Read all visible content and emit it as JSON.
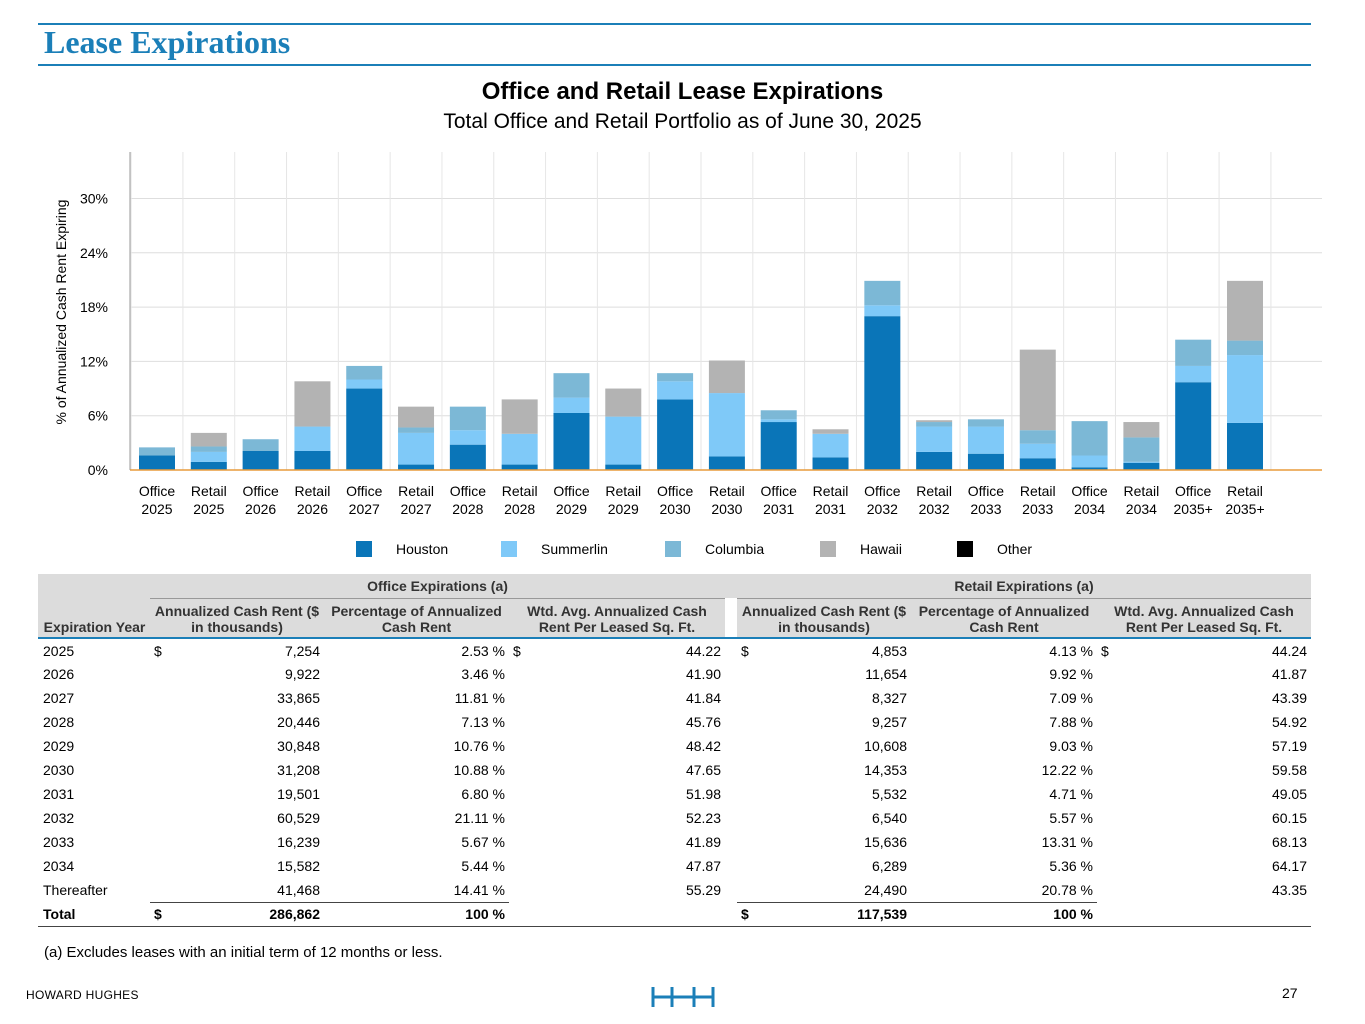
{
  "header": {
    "title": "Lease Expirations"
  },
  "chart_data": {
    "type": "bar",
    "stacked": true,
    "title": "Office and Retail Lease Expirations",
    "subtitle": "Total Office and Retail Portfolio as of June 30, 2025",
    "xlabel": "",
    "ylabel": "% of Annualized Cash Rent Expiring",
    "ylim": [
      0,
      35
    ],
    "yticks": [
      0,
      6,
      12,
      18,
      24,
      30
    ],
    "ytick_labels": [
      "0%",
      "6%",
      "12%",
      "18%",
      "24%",
      "30%"
    ],
    "grid": true,
    "legend_position": "bottom",
    "categories": [
      [
        "Office",
        "2025"
      ],
      [
        "Retail",
        "2025"
      ],
      [
        "Office",
        "2026"
      ],
      [
        "Retail",
        "2026"
      ],
      [
        "Office",
        "2027"
      ],
      [
        "Retail",
        "2027"
      ],
      [
        "Office",
        "2028"
      ],
      [
        "Retail",
        "2028"
      ],
      [
        "Office",
        "2029"
      ],
      [
        "Retail",
        "2029"
      ],
      [
        "Office",
        "2030"
      ],
      [
        "Retail",
        "2030"
      ],
      [
        "Office",
        "2031"
      ],
      [
        "Retail",
        "2031"
      ],
      [
        "Office",
        "2032"
      ],
      [
        "Retail",
        "2032"
      ],
      [
        "Office",
        "2033"
      ],
      [
        "Retail",
        "2033"
      ],
      [
        "Office",
        "2034"
      ],
      [
        "Retail",
        "2034"
      ],
      [
        "Office",
        "2035+"
      ],
      [
        "Retail",
        "2035+"
      ]
    ],
    "series": [
      {
        "name": "Houston",
        "color": "#0a75b8",
        "values": [
          1.6,
          0.9,
          2.1,
          2.1,
          9.0,
          0.6,
          2.8,
          0.6,
          6.3,
          0.6,
          7.8,
          1.5,
          5.3,
          1.4,
          17.0,
          2.0,
          1.8,
          1.3,
          0.3,
          0.8,
          9.7,
          5.2
        ]
      },
      {
        "name": "Summerlin",
        "color": "#7fc9f8",
        "values": [
          0.0,
          1.1,
          0.0,
          2.7,
          1.0,
          3.5,
          1.6,
          3.4,
          1.7,
          5.3,
          2.0,
          7.0,
          0.3,
          2.6,
          1.2,
          2.8,
          3.0,
          1.6,
          1.3,
          0.1,
          1.8,
          7.5
        ]
      },
      {
        "name": "Columbia",
        "color": "#7cb8d6",
        "values": [
          0.9,
          0.6,
          1.3,
          0.0,
          1.5,
          0.6,
          2.6,
          0.0,
          2.7,
          0.0,
          0.9,
          0.0,
          1.0,
          0.0,
          2.7,
          0.5,
          0.8,
          1.5,
          3.8,
          2.7,
          2.9,
          1.6
        ]
      },
      {
        "name": "Hawaii",
        "color": "#b3b3b3",
        "values": [
          0.0,
          1.5,
          0.0,
          5.0,
          0.0,
          2.3,
          0.0,
          3.8,
          0.0,
          3.1,
          0.0,
          3.6,
          0.0,
          0.5,
          0.0,
          0.2,
          0.0,
          8.9,
          0.0,
          1.7,
          0.0,
          6.6
        ]
      },
      {
        "name": "Other",
        "color": "#000000",
        "values": [
          0,
          0,
          0,
          0,
          0,
          0,
          0,
          0,
          0,
          0,
          0,
          0,
          0,
          0,
          0,
          0,
          0,
          0,
          0,
          0,
          0,
          0
        ]
      }
    ]
  },
  "table": {
    "office_group": "Office Expirations (a)",
    "retail_group": "Retail Expirations (a)",
    "year_header": "Expiration Year",
    "col_rent": "Annualized Cash Rent ($ in thousands)",
    "col_pct": "Percentage of Annualized Cash Rent",
    "col_wtd": "Wtd. Avg. Annualized Cash Rent Per Leased Sq. Ft.",
    "rows": [
      {
        "year": "2025",
        "o_rent_cur": "$",
        "o_rent": "7,254",
        "o_pct": "2.53 %",
        "o_wtd_cur": "$",
        "o_wtd": "44.22",
        "r_rent_cur": "$",
        "r_rent": "4,853",
        "r_pct": "4.13 %",
        "r_wtd_cur": "$",
        "r_wtd": "44.24"
      },
      {
        "year": "2026",
        "o_rent_cur": "",
        "o_rent": "9,922",
        "o_pct": "3.46 %",
        "o_wtd_cur": "",
        "o_wtd": "41.90",
        "r_rent_cur": "",
        "r_rent": "11,654",
        "r_pct": "9.92 %",
        "r_wtd_cur": "",
        "r_wtd": "41.87"
      },
      {
        "year": "2027",
        "o_rent_cur": "",
        "o_rent": "33,865",
        "o_pct": "11.81 %",
        "o_wtd_cur": "",
        "o_wtd": "41.84",
        "r_rent_cur": "",
        "r_rent": "8,327",
        "r_pct": "7.09 %",
        "r_wtd_cur": "",
        "r_wtd": "43.39"
      },
      {
        "year": "2028",
        "o_rent_cur": "",
        "o_rent": "20,446",
        "o_pct": "7.13 %",
        "o_wtd_cur": "",
        "o_wtd": "45.76",
        "r_rent_cur": "",
        "r_rent": "9,257",
        "r_pct": "7.88 %",
        "r_wtd_cur": "",
        "r_wtd": "54.92"
      },
      {
        "year": "2029",
        "o_rent_cur": "",
        "o_rent": "30,848",
        "o_pct": "10.76 %",
        "o_wtd_cur": "",
        "o_wtd": "48.42",
        "r_rent_cur": "",
        "r_rent": "10,608",
        "r_pct": "9.03 %",
        "r_wtd_cur": "",
        "r_wtd": "57.19"
      },
      {
        "year": "2030",
        "o_rent_cur": "",
        "o_rent": "31,208",
        "o_pct": "10.88 %",
        "o_wtd_cur": "",
        "o_wtd": "47.65",
        "r_rent_cur": "",
        "r_rent": "14,353",
        "r_pct": "12.22 %",
        "r_wtd_cur": "",
        "r_wtd": "59.58"
      },
      {
        "year": "2031",
        "o_rent_cur": "",
        "o_rent": "19,501",
        "o_pct": "6.80 %",
        "o_wtd_cur": "",
        "o_wtd": "51.98",
        "r_rent_cur": "",
        "r_rent": "5,532",
        "r_pct": "4.71 %",
        "r_wtd_cur": "",
        "r_wtd": "49.05"
      },
      {
        "year": "2032",
        "o_rent_cur": "",
        "o_rent": "60,529",
        "o_pct": "21.11 %",
        "o_wtd_cur": "",
        "o_wtd": "52.23",
        "r_rent_cur": "",
        "r_rent": "6,540",
        "r_pct": "5.57 %",
        "r_wtd_cur": "",
        "r_wtd": "60.15"
      },
      {
        "year": "2033",
        "o_rent_cur": "",
        "o_rent": "16,239",
        "o_pct": "5.67 %",
        "o_wtd_cur": "",
        "o_wtd": "41.89",
        "r_rent_cur": "",
        "r_rent": "15,636",
        "r_pct": "13.31 %",
        "r_wtd_cur": "",
        "r_wtd": "68.13"
      },
      {
        "year": "2034",
        "o_rent_cur": "",
        "o_rent": "15,582",
        "o_pct": "5.44 %",
        "o_wtd_cur": "",
        "o_wtd": "47.87",
        "r_rent_cur": "",
        "r_rent": "6,289",
        "r_pct": "5.36 %",
        "r_wtd_cur": "",
        "r_wtd": "64.17"
      },
      {
        "year": "Thereafter",
        "o_rent_cur": "",
        "o_rent": "41,468",
        "o_pct": "14.41 %",
        "o_wtd_cur": "",
        "o_wtd": "55.29",
        "r_rent_cur": "",
        "r_rent": "24,490",
        "r_pct": "20.78 %",
        "r_wtd_cur": "",
        "r_wtd": "43.35"
      }
    ],
    "total": {
      "label": "Total",
      "o_rent_cur": "$",
      "o_rent": "286,862",
      "o_pct": "100 %",
      "r_rent_cur": "$",
      "r_rent": "117,539",
      "r_pct": "100 %"
    }
  },
  "footnote": "(a) Excludes leases with an initial term of 12 months or less.",
  "footer": {
    "company": "HOWARD HUGHES",
    "page_number": "27",
    "accent_color": "#1b7fb8"
  }
}
